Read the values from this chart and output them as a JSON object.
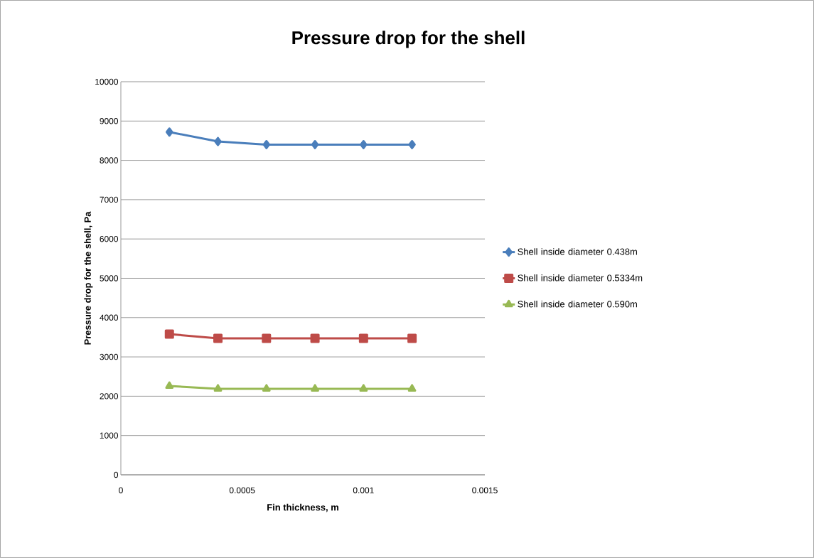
{
  "chart_data": {
    "type": "line",
    "title": "Pressure drop for the shell",
    "xlabel": "Fin thickness,  m",
    "ylabel": "Pressure drop for the shell, Pa",
    "x": [
      0.0002,
      0.0004,
      0.0006,
      0.0008,
      0.001,
      0.0012
    ],
    "series": [
      {
        "name": "Shell inside diameter 0.438m",
        "color": "#4a7ebb",
        "marker": "diamond",
        "values": [
          8720,
          8480,
          8400,
          8400,
          8400,
          8400
        ]
      },
      {
        "name": "Shell inside diameter 0.5334m",
        "color": "#be4b48",
        "marker": "square",
        "values": [
          3580,
          3470,
          3470,
          3470,
          3470,
          3470
        ]
      },
      {
        "name": "Shell inside diameter 0.590m",
        "color": "#98b954",
        "marker": "triangle",
        "values": [
          2260,
          2190,
          2190,
          2190,
          2190,
          2190
        ]
      }
    ],
    "xlim": [
      0,
      0.0015
    ],
    "xticks": [
      0,
      0.0005,
      0.001,
      0.0015
    ],
    "ylim": [
      0,
      10000
    ],
    "yticks": [
      0,
      1000,
      2000,
      3000,
      4000,
      5000,
      6000,
      7000,
      8000,
      9000,
      10000
    ],
    "grid": "y",
    "legend": "right",
    "line_style": "solid"
  }
}
